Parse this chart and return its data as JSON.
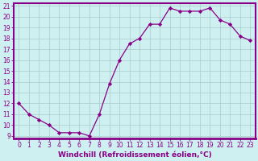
{
  "x": [
    0,
    1,
    2,
    3,
    4,
    5,
    6,
    7,
    8,
    9,
    10,
    11,
    12,
    13,
    14,
    15,
    16,
    17,
    18,
    19,
    20,
    21,
    22,
    23
  ],
  "y": [
    12,
    11,
    10.5,
    10,
    9.3,
    9.3,
    9.3,
    9,
    11,
    13.8,
    16,
    17.5,
    18,
    19.3,
    19.3,
    20.8,
    20.5,
    20.5,
    20.5,
    20.8,
    19.7,
    19.3,
    18.2,
    17.8
  ],
  "line_color": "#880088",
  "marker": "D",
  "marker_size": 2.2,
  "bg_color": "#cff0f0",
  "grid_color": "#aacccc",
  "xlabel": "Windchill (Refroidissement éolien,°C)",
  "ylim": [
    9,
    21
  ],
  "xlim": [
    -0.5,
    23.5
  ],
  "yticks": [
    9,
    10,
    11,
    12,
    13,
    14,
    15,
    16,
    17,
    18,
    19,
    20,
    21
  ],
  "ytick_labels": [
    "9",
    "10",
    "11",
    "12",
    "13",
    "14",
    "15",
    "16",
    "17",
    "18",
    "19",
    "20",
    "21"
  ],
  "xticks": [
    0,
    1,
    2,
    3,
    4,
    5,
    6,
    7,
    8,
    9,
    10,
    11,
    12,
    13,
    14,
    15,
    16,
    17,
    18,
    19,
    20,
    21,
    22,
    23
  ],
  "xtick_labels": [
    "0",
    "1",
    "2",
    "3",
    "4",
    "5",
    "6",
    "7",
    "8",
    "9",
    "10",
    "11",
    "12",
    "13",
    "14",
    "15",
    "16",
    "17",
    "18",
    "19",
    "20",
    "21",
    "22",
    "23"
  ],
  "xlabel_fontsize": 6.5,
  "tick_fontsize": 5.5,
  "border_color": "#880088",
  "border_lw": 1.5
}
